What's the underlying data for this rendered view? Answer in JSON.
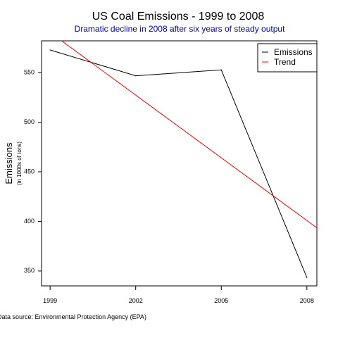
{
  "chart_data": {
    "type": "line",
    "title": "US Coal Emissions - 1999 to 2008",
    "subtitle": "Dramatic decline in 2008 after six years of steady output",
    "ylabel": "Emissions",
    "ylabel_sub": "(in 1000s of tons)",
    "xlabel": "",
    "x": [
      1999,
      2002,
      2005,
      2008
    ],
    "x_tick_labels": [
      "1999",
      "2002",
      "2005",
      "2008"
    ],
    "y_ticks": [
      350,
      400,
      450,
      500,
      550
    ],
    "xlim": [
      1998.7,
      2008.35
    ],
    "ylim": [
      335,
      582
    ],
    "grid": false,
    "legend_position": "top-right",
    "series": [
      {
        "name": "Emissions",
        "color": "#000000",
        "values": [
          572.8,
          546.8,
          552.7,
          343.4
        ]
      },
      {
        "name": "Trend",
        "color": "#ff0000",
        "kind": "linear-fit",
        "line": [
          {
            "x": 1999,
            "y": 590.5
          },
          {
            "x": 2008.35,
            "y": 393.5
          }
        ]
      }
    ]
  },
  "footnote": "Data source: Environmental Protection Agency (EPA)",
  "colors": {
    "subtitle": "#0000cc",
    "trend": "#ff0000",
    "axis": "#000000"
  }
}
